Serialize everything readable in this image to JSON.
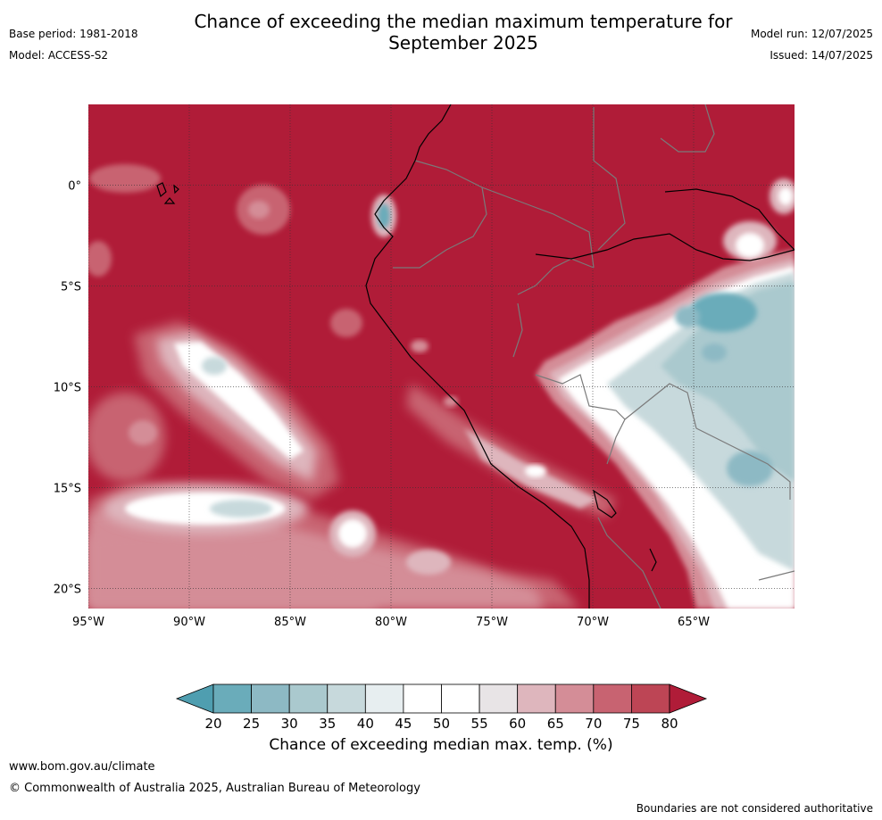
{
  "header": {
    "title_line1": "Chance of exceeding the median maximum temperature for",
    "title_line2": "September 2025",
    "base_period": "Base period: 1981-2018",
    "model": "Model: ACCESS-S2",
    "model_run": "Model run: 12/07/2025",
    "issued": "Issued: 14/07/2025"
  },
  "map": {
    "lon_range": [
      -95,
      -60
    ],
    "lat_range": [
      -21,
      4
    ],
    "lon_ticks": [
      {
        "value": -95,
        "label": "95°W"
      },
      {
        "value": -90,
        "label": "90°W"
      },
      {
        "value": -85,
        "label": "85°W"
      },
      {
        "value": -80,
        "label": "80°W"
      },
      {
        "value": -75,
        "label": "75°W"
      },
      {
        "value": -70,
        "label": "70°W"
      },
      {
        "value": -65,
        "label": "65°W"
      }
    ],
    "lat_ticks": [
      {
        "value": 0,
        "label": "0°"
      },
      {
        "value": -5,
        "label": "5°S"
      },
      {
        "value": -10,
        "label": "10°S"
      },
      {
        "value": -15,
        "label": "15°S"
      },
      {
        "value": -20,
        "label": "20°S"
      }
    ],
    "gridlines": true,
    "background_class_color": "#b01c38"
  },
  "legend": {
    "label": "Chance of exceeding median max. temp. (%)",
    "ticks": [
      "20",
      "25",
      "30",
      "35",
      "40",
      "45",
      "50",
      "55",
      "60",
      "65",
      "70",
      "75",
      "80"
    ],
    "colors": [
      "#4f9eb0",
      "#6aacba",
      "#8db9c4",
      "#aac9ce",
      "#c7d9dc",
      "#e7eef0",
      "#ffffff",
      "#ffffff",
      "#e8e4e6",
      "#deb6bd",
      "#d48d97",
      "#c86371",
      "#bd4555",
      "#b01c38"
    ],
    "extend": "both"
  },
  "footer": {
    "url": "www.bom.gov.au/climate",
    "copyright": "© Commonwealth of Australia 2025, Australian Bureau of Meteorology",
    "disclaimer": "Boundaries are not considered authoritative"
  }
}
